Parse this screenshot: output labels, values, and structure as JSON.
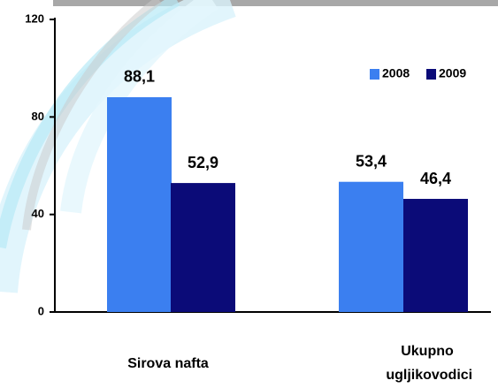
{
  "chart_data": {
    "type": "bar",
    "categories": [
      "Sirova nafta",
      "Ukupno ugljikovodici"
    ],
    "series": [
      {
        "name": "2008",
        "color": "#3b7ff0",
        "values": [
          88.1,
          53.4
        ],
        "value_labels": [
          "88,1",
          "53,4"
        ]
      },
      {
        "name": "2009",
        "color": "#0b0b78",
        "values": [
          52.9,
          46.4
        ],
        "value_labels": [
          "52,9",
          "46,4"
        ]
      }
    ],
    "ylim": [
      0,
      120
    ],
    "yticks": [
      0,
      40,
      80,
      120
    ],
    "grid": false,
    "legend": "top-right"
  }
}
